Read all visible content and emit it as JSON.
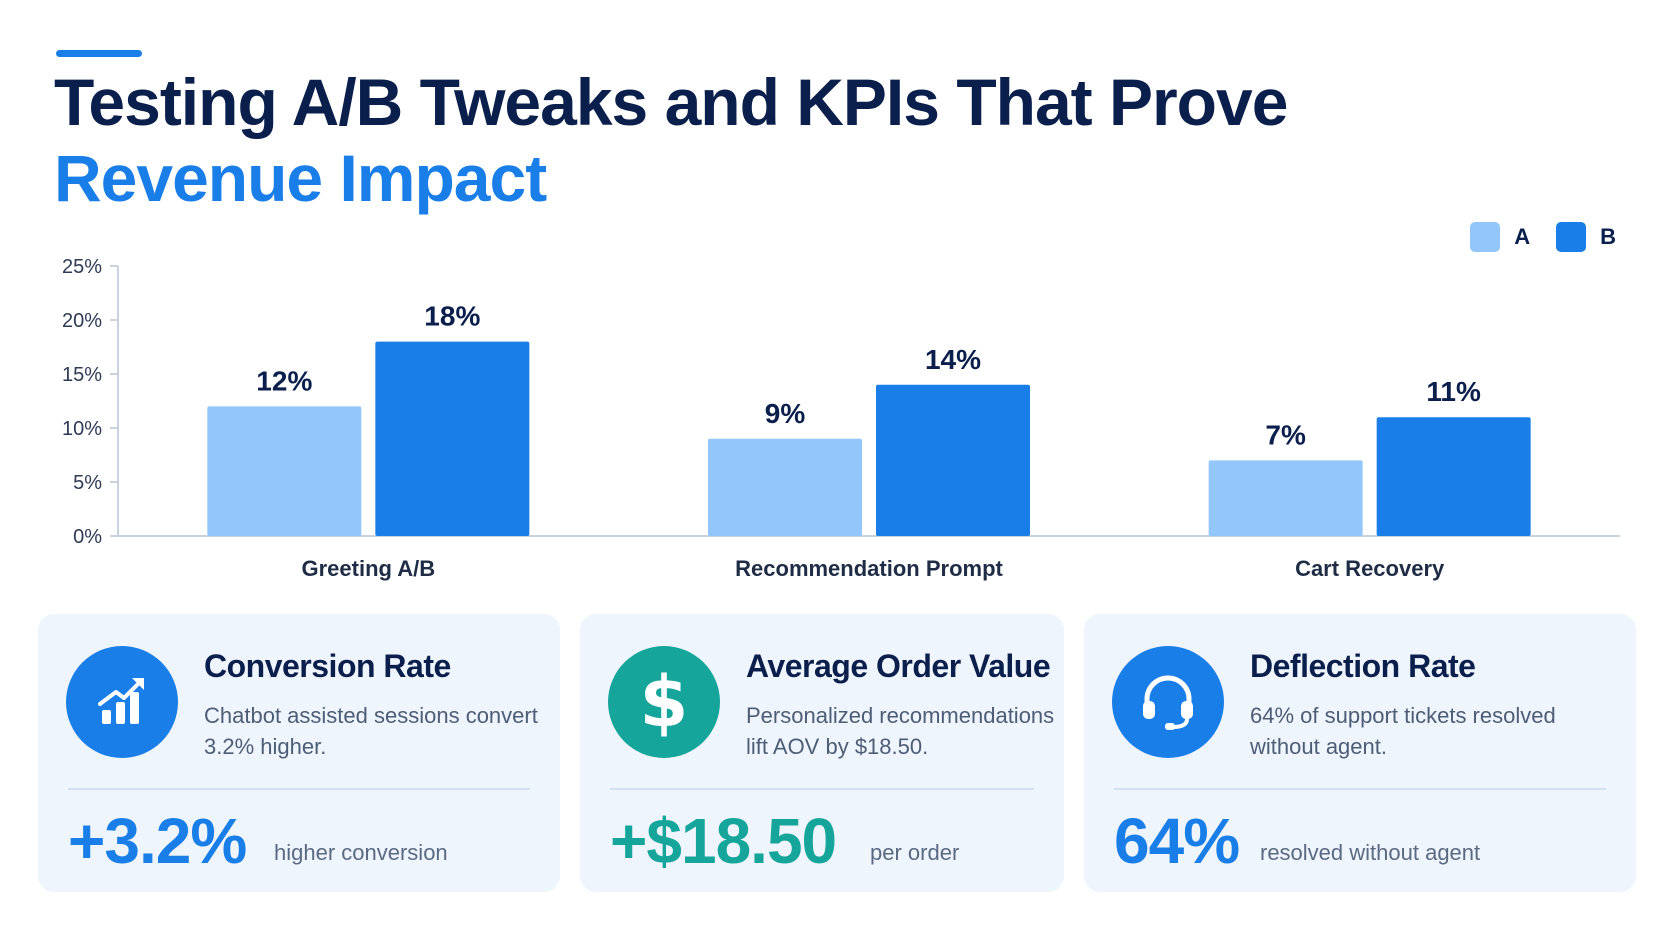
{
  "header": {
    "title_line1": "Testing A/B Tweaks and KPIs That Prove",
    "title_line2": "Revenue Impact"
  },
  "colors": {
    "navy": "#0b1f4d",
    "blue": "#1a7ee8",
    "light_blue": "#93c6fb",
    "teal": "#16a59a",
    "card_bg": "#eef5fd"
  },
  "chart_data": {
    "type": "bar",
    "categories": [
      "Greeting A/B",
      "Recommendation Prompt",
      "Cart Recovery"
    ],
    "series": [
      {
        "name": "A",
        "values": [
          12,
          9,
          7
        ],
        "color": "#93c6fb"
      },
      {
        "name": "B",
        "values": [
          18,
          14,
          11
        ],
        "color": "#1a7ee8"
      }
    ],
    "data_labels": [
      [
        "12%",
        "9%",
        "7%"
      ],
      [
        "18%",
        "14%",
        "11%"
      ]
    ],
    "yticks": [
      0,
      5,
      10,
      15,
      20,
      25
    ],
    "ytick_labels": [
      "0%",
      "5%",
      "10%",
      "15%",
      "20%",
      "25%"
    ],
    "ylim": [
      0,
      25
    ],
    "legend_position": "top-right",
    "grid": false
  },
  "cards": [
    {
      "title": "Conversion Rate",
      "desc": "Chatbot assisted sessions convert 3.2% higher.",
      "value": "+3.2%",
      "subtext": "higher conversion",
      "icon": "chart-growth-icon",
      "accent": "#1a7ee8"
    },
    {
      "title": "Average Order Value",
      "desc": "Personalized recommendations lift AOV by $18.50.",
      "value": "+$18.50",
      "subtext": "per order",
      "icon": "dollar-icon",
      "accent": "#16a59a"
    },
    {
      "title": "Deflection Rate",
      "desc": "64% of support tickets resolved without agent.",
      "value": "64%",
      "subtext": "resolved without agent",
      "icon": "headset-icon",
      "accent": "#1a7ee8"
    }
  ]
}
